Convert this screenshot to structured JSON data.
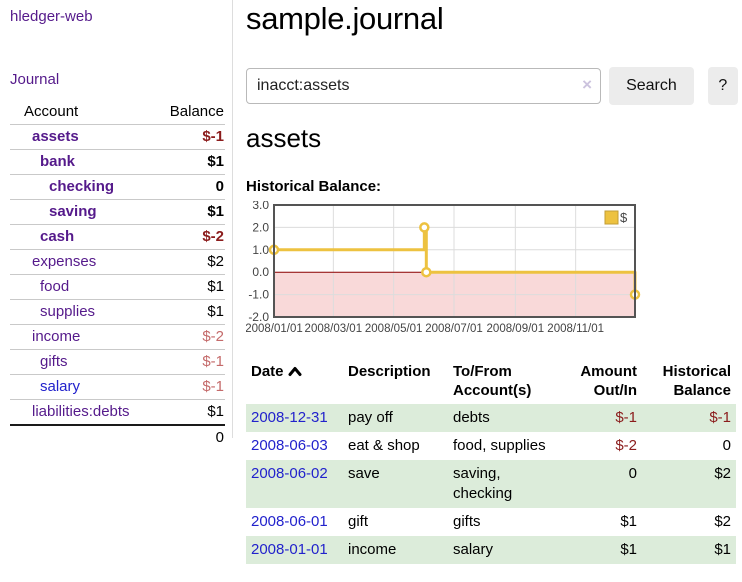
{
  "app": {
    "title": "hledger-web",
    "journal_label": "Journal"
  },
  "colors": {
    "link_purple": "#551A8B",
    "link_blue": "#2222CC",
    "negative_strong": "#8b1c1c",
    "negative_soft": "#c46a6a",
    "row_green": "#dcecda",
    "chart_line": "#edc240",
    "chart_negative_fill": "#f9d9d9",
    "chart_zero_line": "#8b0000"
  },
  "sidebar": {
    "headers": {
      "account": "Account",
      "balance": "Balance"
    },
    "accounts": [
      {
        "name": "assets",
        "balance": "$-1",
        "level": 0,
        "bold": true,
        "link": "purple",
        "balance_class": "neg-strong"
      },
      {
        "name": "bank",
        "balance": "$1",
        "level": 1,
        "bold": true,
        "link": "purple",
        "balance_class": "pos"
      },
      {
        "name": "checking",
        "balance": "0",
        "level": 2,
        "bold": true,
        "link": "purple",
        "balance_class": "pos"
      },
      {
        "name": "saving",
        "balance": "$1",
        "level": 2,
        "bold": true,
        "link": "purple",
        "balance_class": "pos"
      },
      {
        "name": "cash",
        "balance": "$-2",
        "level": 1,
        "bold": true,
        "link": "purple",
        "balance_class": "neg-strong"
      },
      {
        "name": "expenses",
        "balance": "$2",
        "level": 0,
        "bold": false,
        "link": "purple",
        "balance_class": "pos"
      },
      {
        "name": "food",
        "balance": "$1",
        "level": 1,
        "bold": false,
        "link": "purple",
        "balance_class": "pos"
      },
      {
        "name": "supplies",
        "balance": "$1",
        "level": 1,
        "bold": false,
        "link": "purple",
        "balance_class": "pos"
      },
      {
        "name": "income",
        "balance": "$-2",
        "level": 0,
        "bold": false,
        "link": "purple",
        "balance_class": "neg-soft"
      },
      {
        "name": "gifts",
        "balance": "$-1",
        "level": 1,
        "bold": false,
        "link": "purple",
        "balance_class": "neg-soft"
      },
      {
        "name": "salary",
        "balance": "$-1",
        "level": 1,
        "bold": false,
        "link": "blue",
        "balance_class": "neg-soft"
      },
      {
        "name": "liabilities:debts",
        "balance": "$1",
        "level": 0,
        "bold": false,
        "link": "purple",
        "balance_class": "pos"
      }
    ],
    "total": "0"
  },
  "main": {
    "title": "sample.journal",
    "search": {
      "value": "inacct:assets",
      "clear_icon": "×",
      "button_label": "Search",
      "help_label": "?"
    },
    "account_heading": "assets",
    "chart_label": "Historical Balance:"
  },
  "chart_data": {
    "type": "line",
    "title": "Historical Balance",
    "series": [
      {
        "name": "$",
        "color": "#edc240",
        "step": true,
        "points": [
          [
            "2008-01-01",
            1
          ],
          [
            "2008-06-01",
            2
          ],
          [
            "2008-06-03",
            0
          ],
          [
            "2008-12-31",
            -1
          ]
        ]
      }
    ],
    "x_range": [
      "2008-01-01",
      "2008-12-31"
    ],
    "x_ticks": [
      "2008/01/01",
      "2008/03/01",
      "2008/05/01",
      "2008/07/01",
      "2008/09/01",
      "2008/11/01"
    ],
    "ylim": [
      -2,
      3
    ],
    "y_ticks": [
      3,
      2,
      1,
      0,
      -1,
      -2
    ],
    "grid": true,
    "legend_position": "top-right",
    "negative_region_color": "#f9d9d9",
    "zero_line_color": "#8b0000"
  },
  "register": {
    "headers": {
      "date": "Date",
      "description": "Description",
      "accounts": "To/From Account(s)",
      "amount": "Amount Out/In",
      "balance": "Historical Balance"
    },
    "sort": "ascending",
    "rows": [
      {
        "date": "2008-12-31",
        "description": "pay off",
        "accounts": "debts",
        "amount": "$-1",
        "amount_neg": true,
        "balance": "$-1",
        "balance_neg": true
      },
      {
        "date": "2008-06-03",
        "description": "eat & shop",
        "accounts": "food, supplies",
        "amount": "$-2",
        "amount_neg": true,
        "balance": "0",
        "balance_neg": false
      },
      {
        "date": "2008-06-02",
        "description": "save",
        "accounts": "saving, checking",
        "amount": "0",
        "amount_neg": false,
        "balance": "$2",
        "balance_neg": false
      },
      {
        "date": "2008-06-01",
        "description": "gift",
        "accounts": "gifts",
        "amount": "$1",
        "amount_neg": false,
        "balance": "$2",
        "balance_neg": false
      },
      {
        "date": "2008-01-01",
        "description": "income",
        "accounts": "salary",
        "amount": "$1",
        "amount_neg": false,
        "balance": "$1",
        "balance_neg": false
      }
    ]
  }
}
